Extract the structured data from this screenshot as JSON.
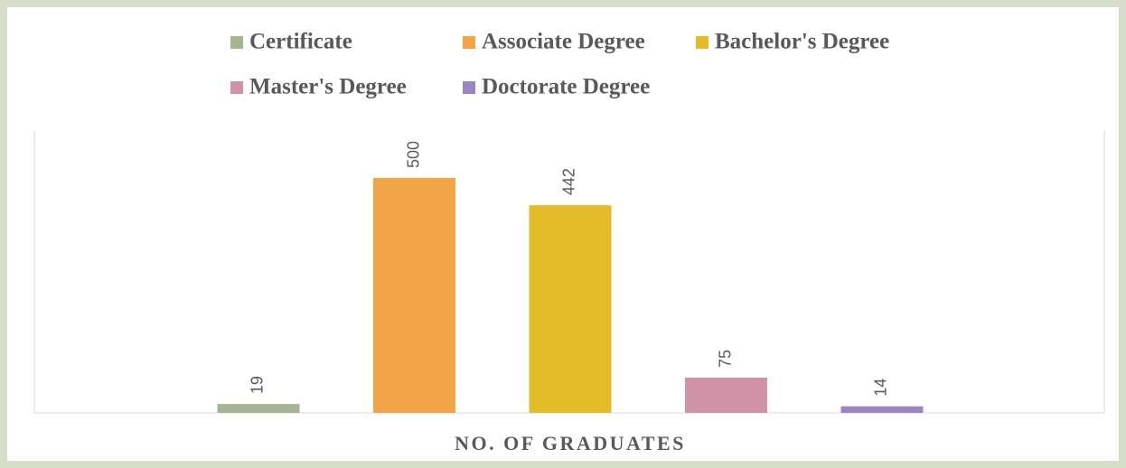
{
  "chart_data": {
    "type": "bar",
    "categories": [
      "NO. OF GRADUATES"
    ],
    "series": [
      {
        "name": "Certificate",
        "color": "#a5b592",
        "values": [
          19
        ]
      },
      {
        "name": "Associate Degree",
        "color": "#f3a447",
        "values": [
          500
        ]
      },
      {
        "name": "Bachelor's Degree",
        "color": "#e4bc2a",
        "values": [
          442
        ]
      },
      {
        "name": "Master's Degree",
        "color": "#d092a7",
        "values": [
          75
        ]
      },
      {
        "name": "Doctorate Degree",
        "color": "#9c85c0",
        "values": [
          14
        ]
      }
    ],
    "ylim": [
      0,
      600
    ],
    "legend": "top",
    "data_labels": true
  }
}
